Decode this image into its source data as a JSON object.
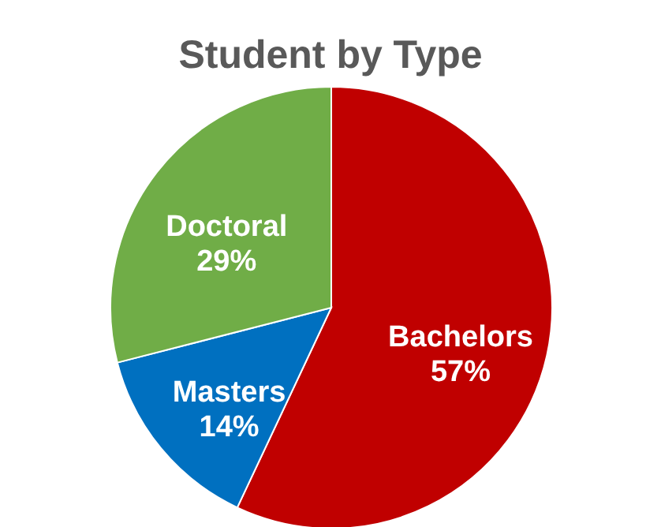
{
  "chart_data": {
    "type": "pie",
    "title": "Student by Type",
    "categories": [
      "Bachelors",
      "Masters",
      "Doctoral"
    ],
    "values": [
      57,
      14,
      29
    ],
    "value_labels": [
      "57%",
      "14%",
      "29%"
    ],
    "colors": [
      "#c00000",
      "#0070c0",
      "#70ad47"
    ]
  }
}
